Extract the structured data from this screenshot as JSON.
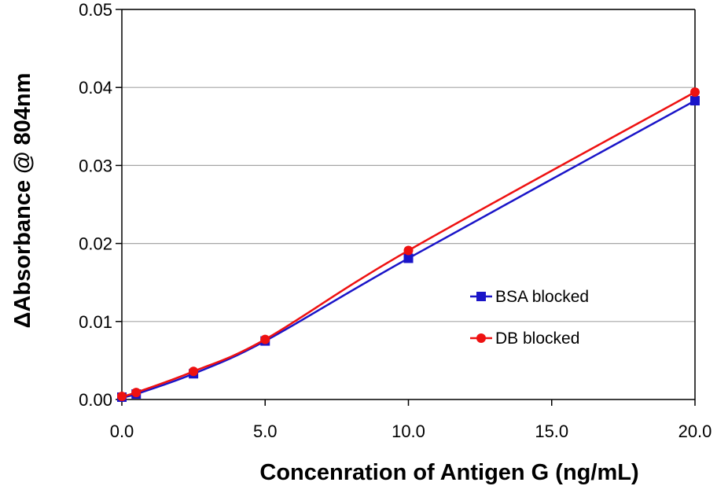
{
  "chart_data": {
    "type": "line",
    "title": "",
    "xlabel": "Concenration of Antigen G (ng/mL)",
    "ylabel": "ΔAbsorbance @ 804nm",
    "xlim": [
      0,
      20
    ],
    "ylim": [
      0,
      0.05
    ],
    "x_ticks": [
      "0.0",
      "5.0",
      "10.0",
      "15.0",
      "20.0"
    ],
    "x_tick_values": [
      0,
      5,
      10,
      15,
      20
    ],
    "y_ticks": [
      "0.00",
      "0.01",
      "0.02",
      "0.03",
      "0.04",
      "0.05"
    ],
    "y_tick_values": [
      0,
      0.01,
      0.02,
      0.03,
      0.04,
      0.05
    ],
    "grid": "horizontal",
    "legend_position": "right-middle",
    "series": [
      {
        "name": "BSA blocked",
        "marker": "square",
        "color": "#1a14c8",
        "x": [
          0,
          0.5,
          2.5,
          5,
          10,
          20
        ],
        "y": [
          0.0003,
          0.0007,
          0.0033,
          0.0075,
          0.0181,
          0.0383
        ]
      },
      {
        "name": "DB blocked",
        "marker": "circle",
        "color": "#ee1111",
        "x": [
          0,
          0.5,
          2.5,
          5,
          10,
          20
        ],
        "y": [
          0.0004,
          0.0009,
          0.0036,
          0.0077,
          0.0191,
          0.0394
        ]
      }
    ]
  }
}
